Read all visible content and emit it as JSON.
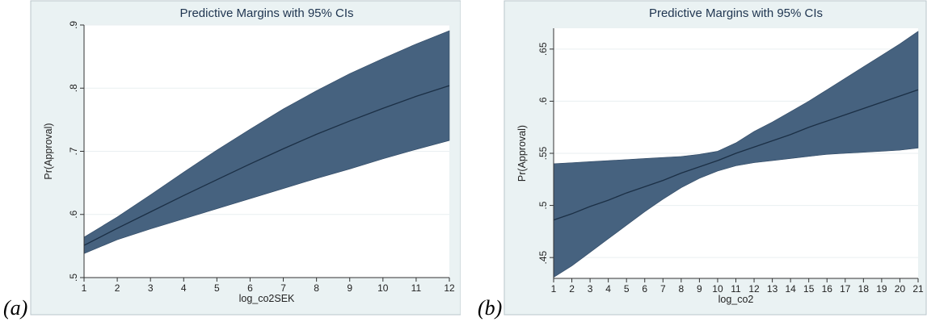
{
  "chart_data": [
    {
      "panel_label": "(a)",
      "type": "area",
      "title": "Predictive Margins with 95% CIs",
      "xlabel": "log_co2SEK",
      "ylabel": "Pr(Approval)",
      "xlim": [
        1,
        12
      ],
      "ylim": [
        0.5,
        0.9
      ],
      "x_ticks": [
        "1",
        "2",
        "3",
        "4",
        "5",
        "6",
        "7",
        "8",
        "9",
        "10",
        "11",
        "12"
      ],
      "y_ticks": [
        ".5",
        ".6",
        ".7",
        ".8",
        ".9"
      ],
      "y_tick_values": [
        0.5,
        0.6,
        0.7,
        0.8,
        0.9
      ],
      "grid": true,
      "x": [
        1,
        2,
        3,
        4,
        5,
        6,
        7,
        8,
        9,
        10,
        11,
        12
      ],
      "series": [
        {
          "values": [
            0.551,
            0.578,
            0.604,
            0.63,
            0.655,
            0.68,
            0.704,
            0.727,
            0.748,
            0.768,
            0.787,
            0.804
          ]
        },
        {
          "values": [
            0.538,
            0.56,
            0.577,
            0.593,
            0.609,
            0.625,
            0.641,
            0.657,
            0.672,
            0.688,
            0.703,
            0.717
          ]
        },
        {
          "values": [
            0.564,
            0.596,
            0.631,
            0.667,
            0.702,
            0.735,
            0.767,
            0.796,
            0.823,
            0.847,
            0.87,
            0.891
          ]
        }
      ],
      "band_color": "#46627f",
      "line_color": "#1b2f45",
      "background": "#eaf2f3"
    },
    {
      "panel_label": "(b)",
      "type": "area",
      "title": "Predictive Margins with 95% CIs",
      "xlabel": "log_co2",
      "ylabel": "Pr(Approval)",
      "xlim": [
        1,
        21
      ],
      "ylim": [
        0.43,
        0.67
      ],
      "x_ticks": [
        "1",
        "2",
        "3",
        "4",
        "5",
        "6",
        "7",
        "8",
        "9",
        "10",
        "11",
        "12",
        "13",
        "14",
        "15",
        "16",
        "17",
        "18",
        "19",
        "20",
        "21"
      ],
      "y_ticks": [
        ".45",
        ".5",
        ".55",
        ".6",
        ".65"
      ],
      "y_tick_values": [
        0.45,
        0.5,
        0.55,
        0.6,
        0.65
      ],
      "grid": true,
      "x": [
        1,
        2,
        3,
        4,
        5,
        6,
        7,
        8,
        9,
        10,
        11,
        12,
        13,
        14,
        15,
        16,
        17,
        18,
        19,
        20,
        21
      ],
      "series": [
        {
          "values": [
            0.486,
            0.492,
            0.499,
            0.505,
            0.512,
            0.518,
            0.524,
            0.531,
            0.537,
            0.543,
            0.55,
            0.556,
            0.562,
            0.568,
            0.575,
            0.581,
            0.587,
            0.593,
            0.599,
            0.605,
            0.611
          ]
        },
        {
          "values": [
            0.431,
            0.442,
            0.455,
            0.468,
            0.481,
            0.494,
            0.506,
            0.517,
            0.526,
            0.533,
            0.538,
            0.541,
            0.543,
            0.545,
            0.547,
            0.549,
            0.55,
            0.551,
            0.552,
            0.553,
            0.555
          ]
        },
        {
          "values": [
            0.54,
            0.541,
            0.542,
            0.543,
            0.544,
            0.545,
            0.546,
            0.547,
            0.549,
            0.552,
            0.56,
            0.571,
            0.58,
            0.59,
            0.6,
            0.611,
            0.622,
            0.633,
            0.644,
            0.655,
            0.667
          ]
        }
      ],
      "band_color": "#46627f",
      "line_color": "#1b2f45",
      "background": "#eaf2f3"
    }
  ]
}
